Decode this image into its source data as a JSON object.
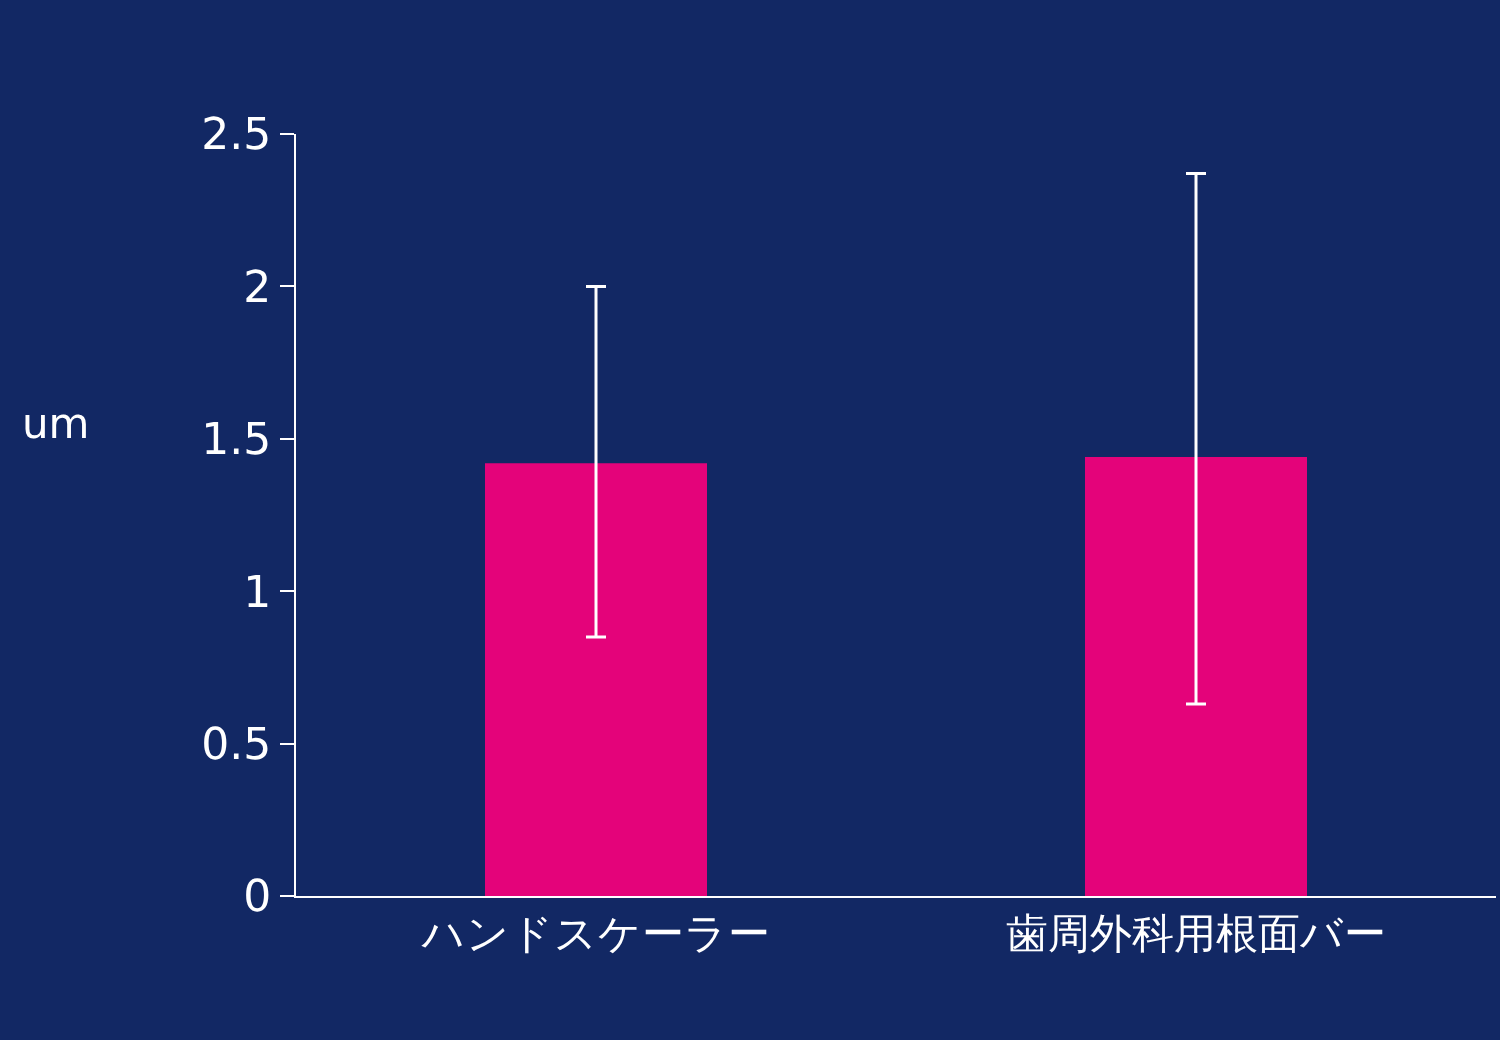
{
  "chart_data": {
    "type": "bar",
    "ylabel": "um",
    "categories": [
      "ハンドスケーラー",
      "歯周外科用根面バー"
    ],
    "series": [
      {
        "color": "#e4037a",
        "values": [
          1.42,
          1.44
        ],
        "errors": [
          [
            0.85,
            2.0
          ],
          [
            0.63,
            2.37
          ]
        ]
      }
    ],
    "ylim": [
      0,
      2.5
    ],
    "yticks": [
      0,
      0.5,
      1,
      1.5,
      2,
      2.5
    ],
    "grid": false
  }
}
